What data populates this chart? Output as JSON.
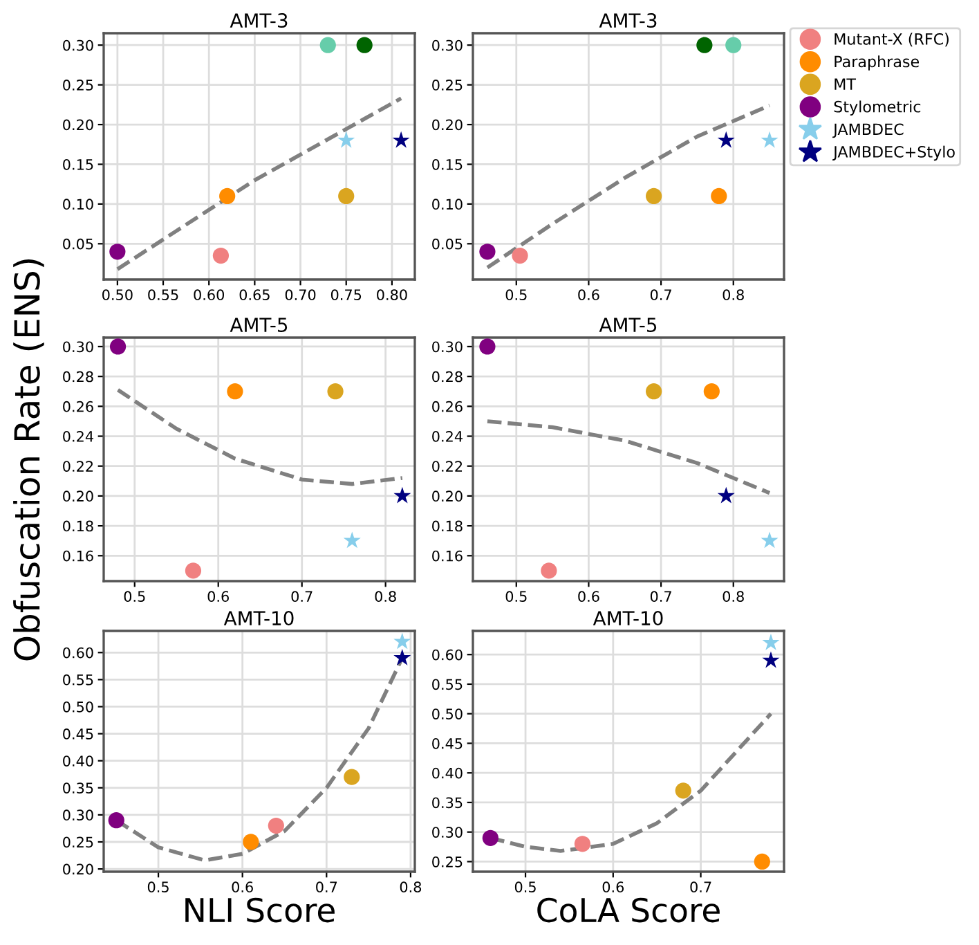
{
  "chart_data": [
    {
      "type": "scatter",
      "title": "AMT-3",
      "xlim": [
        0.485,
        0.825
      ],
      "xticks": [
        {
          "value": 0.5,
          "label": "0.50"
        },
        {
          "value": 0.55,
          "label": "0.55"
        },
        {
          "value": 0.6,
          "label": "0.60"
        },
        {
          "value": 0.65,
          "label": "0.65"
        },
        {
          "value": 0.7,
          "label": "0.70"
        },
        {
          "value": 0.75,
          "label": "0.75"
        },
        {
          "value": 0.8,
          "label": "0.80"
        }
      ],
      "ylim": [
        0.005,
        0.315
      ],
      "yticks": [
        {
          "value": 0.05,
          "label": "0.05"
        },
        {
          "value": 0.1,
          "label": "0.10"
        },
        {
          "value": 0.15,
          "label": "0.15"
        },
        {
          "value": 0.2,
          "label": "0.20"
        },
        {
          "value": 0.25,
          "label": "0.25"
        },
        {
          "value": 0.3,
          "label": "0.30"
        }
      ],
      "grid": true,
      "legend": false,
      "series": [
        {
          "type": "line",
          "color": "#808080",
          "line_style": "dashed",
          "marker": "none",
          "x": [
            0.5,
            0.65,
            0.81
          ],
          "values": [
            0.018,
            0.13,
            0.233
          ]
        },
        {
          "color": "#f08080",
          "marker": "circle",
          "x": [
            0.613
          ],
          "values": [
            0.035
          ]
        },
        {
          "color": "#ff8c00",
          "marker": "circle",
          "x": [
            0.62
          ],
          "values": [
            0.11
          ]
        },
        {
          "color": "#daa520",
          "marker": "circle",
          "x": [
            0.75
          ],
          "values": [
            0.11
          ]
        },
        {
          "color": "#800080",
          "marker": "circle",
          "x": [
            0.5
          ],
          "values": [
            0.04
          ]
        },
        {
          "color": "#66cdaa",
          "marker": "circle",
          "x": [
            0.73
          ],
          "values": [
            0.3
          ]
        },
        {
          "color": "#006400",
          "marker": "circle",
          "x": [
            0.77
          ],
          "values": [
            0.3
          ]
        },
        {
          "color": "#87ceeb",
          "marker": "star",
          "x": [
            0.75
          ],
          "values": [
            0.18
          ]
        },
        {
          "color": "#000080",
          "marker": "star",
          "x": [
            0.81
          ],
          "values": [
            0.18
          ]
        }
      ]
    },
    {
      "type": "scatter",
      "title": "AMT-3",
      "xlim": [
        0.44,
        0.87
      ],
      "xticks": [
        0.5,
        0.6,
        0.7,
        0.8
      ],
      "ylim": [
        0.005,
        0.315
      ],
      "yticks": [
        {
          "value": 0.05,
          "label": "0.05"
        },
        {
          "value": 0.1,
          "label": "0.10"
        },
        {
          "value": 0.15,
          "label": "0.15"
        },
        {
          "value": 0.2,
          "label": "0.20"
        },
        {
          "value": 0.25,
          "label": "0.25"
        },
        {
          "value": 0.3,
          "label": "0.30"
        }
      ],
      "grid": true,
      "legend": "top right",
      "series": [
        {
          "type": "line",
          "color": "#808080",
          "line_style": "dashed",
          "marker": "none",
          "x": [
            0.46,
            0.55,
            0.65,
            0.75,
            0.85
          ],
          "values": [
            0.02,
            0.075,
            0.133,
            0.185,
            0.224
          ]
        },
        {
          "name": "Mutant-X (RFC)",
          "color": "#f08080",
          "marker": "circle",
          "x": [
            0.505
          ],
          "values": [
            0.035
          ]
        },
        {
          "name": "Paraphrase",
          "color": "#ff8c00",
          "marker": "circle",
          "x": [
            0.78
          ],
          "values": [
            0.11
          ]
        },
        {
          "name": "MT",
          "color": "#daa520",
          "marker": "circle",
          "x": [
            0.69
          ],
          "values": [
            0.11
          ]
        },
        {
          "name": "Stylometric",
          "color": "#800080",
          "marker": "circle",
          "x": [
            0.46
          ],
          "values": [
            0.04
          ]
        },
        {
          "color": "#66cdaa",
          "marker": "circle",
          "x": [
            0.8
          ],
          "values": [
            0.3
          ]
        },
        {
          "color": "#006400",
          "marker": "circle",
          "x": [
            0.76
          ],
          "values": [
            0.3
          ]
        },
        {
          "name": "JAMBDEC",
          "color": "#87ceeb",
          "marker": "star",
          "x": [
            0.85
          ],
          "values": [
            0.18
          ]
        },
        {
          "name": "JAMBDEC+Stylo",
          "color": "#000080",
          "marker": "star",
          "x": [
            0.79
          ],
          "values": [
            0.18
          ]
        }
      ]
    },
    {
      "type": "scatter",
      "title": "AMT-5",
      "ylabel": "Obfuscation Rate (ENS)",
      "xlim": [
        0.463,
        0.835
      ],
      "xticks": [
        0.5,
        0.6,
        0.7,
        0.8
      ],
      "ylim": [
        0.143,
        0.306
      ],
      "yticks": [
        0.16,
        0.18,
        {
          "value": 0.2,
          "label": "0.20"
        },
        0.22,
        0.24,
        0.26,
        0.28,
        {
          "value": 0.3,
          "label": "0.30"
        }
      ],
      "grid": true,
      "legend": false,
      "series": [
        {
          "type": "line",
          "color": "#808080",
          "line_style": "dashed",
          "marker": "none",
          "x": [
            0.48,
            0.55,
            0.62,
            0.7,
            0.76,
            0.82
          ],
          "values": [
            0.271,
            0.245,
            0.225,
            0.211,
            0.208,
            0.212
          ]
        },
        {
          "color": "#f08080",
          "marker": "circle",
          "x": [
            0.57
          ],
          "values": [
            0.15
          ]
        },
        {
          "color": "#ff8c00",
          "marker": "circle",
          "x": [
            0.62
          ],
          "values": [
            0.27
          ]
        },
        {
          "color": "#daa520",
          "marker": "circle",
          "x": [
            0.74
          ],
          "values": [
            0.27
          ]
        },
        {
          "color": "#800080",
          "marker": "circle",
          "x": [
            0.48
          ],
          "values": [
            0.3
          ]
        },
        {
          "color": "#87ceeb",
          "marker": "star",
          "x": [
            0.76
          ],
          "values": [
            0.17
          ]
        },
        {
          "color": "#000080",
          "marker": "star",
          "x": [
            0.82
          ],
          "values": [
            0.2
          ]
        }
      ]
    },
    {
      "type": "scatter",
      "title": "AMT-5",
      "xlim": [
        0.44,
        0.87
      ],
      "xticks": [
        0.5,
        0.6,
        0.7,
        0.8
      ],
      "ylim": [
        0.143,
        0.306
      ],
      "yticks": [
        0.16,
        0.18,
        {
          "value": 0.2,
          "label": "0.20"
        },
        0.22,
        0.24,
        0.26,
        0.28,
        {
          "value": 0.3,
          "label": "0.30"
        }
      ],
      "grid": true,
      "legend": false,
      "series": [
        {
          "type": "line",
          "color": "#808080",
          "line_style": "dashed",
          "marker": "none",
          "x": [
            0.46,
            0.55,
            0.65,
            0.75,
            0.85
          ],
          "values": [
            0.25,
            0.246,
            0.237,
            0.222,
            0.202
          ]
        },
        {
          "color": "#f08080",
          "marker": "circle",
          "x": [
            0.545
          ],
          "values": [
            0.15
          ]
        },
        {
          "color": "#ff8c00",
          "marker": "circle",
          "x": [
            0.77
          ],
          "values": [
            0.27
          ]
        },
        {
          "color": "#daa520",
          "marker": "circle",
          "x": [
            0.69
          ],
          "values": [
            0.27
          ]
        },
        {
          "color": "#800080",
          "marker": "circle",
          "x": [
            0.46
          ],
          "values": [
            0.3
          ]
        },
        {
          "color": "#87ceeb",
          "marker": "star",
          "x": [
            0.85
          ],
          "values": [
            0.17
          ]
        },
        {
          "color": "#000080",
          "marker": "star",
          "x": [
            0.79
          ],
          "values": [
            0.2
          ]
        }
      ]
    },
    {
      "type": "scatter",
      "title": "AMT-10",
      "xlabel": "NLI Score",
      "xlim": [
        0.435,
        0.805
      ],
      "xticks": [
        0.5,
        0.6,
        0.7,
        0.8
      ],
      "ylim": [
        0.195,
        0.64
      ],
      "yticks": [
        {
          "value": 0.2,
          "label": "0.20"
        },
        0.25,
        {
          "value": 0.3,
          "label": "0.30"
        },
        0.35,
        {
          "value": 0.4,
          "label": "0.40"
        },
        0.45,
        {
          "value": 0.5,
          "label": "0.50"
        },
        0.55,
        {
          "value": 0.6,
          "label": "0.60"
        }
      ],
      "grid": true,
      "legend": false,
      "series": [
        {
          "type": "line",
          "color": "#808080",
          "line_style": "dashed",
          "marker": "none",
          "x": [
            0.45,
            0.5,
            0.555,
            0.6,
            0.65,
            0.7,
            0.75,
            0.79
          ],
          "values": [
            0.29,
            0.24,
            0.216,
            0.228,
            0.27,
            0.35,
            0.46,
            0.59
          ]
        },
        {
          "color": "#f08080",
          "marker": "circle",
          "x": [
            0.64
          ],
          "values": [
            0.28
          ]
        },
        {
          "color": "#ff8c00",
          "marker": "circle",
          "x": [
            0.61
          ],
          "values": [
            0.25
          ]
        },
        {
          "color": "#daa520",
          "marker": "circle",
          "x": [
            0.73
          ],
          "values": [
            0.37
          ]
        },
        {
          "color": "#800080",
          "marker": "circle",
          "x": [
            0.45
          ],
          "values": [
            0.29
          ]
        },
        {
          "color": "#87ceeb",
          "marker": "star",
          "x": [
            0.79
          ],
          "values": [
            0.62
          ]
        },
        {
          "color": "#000080",
          "marker": "star",
          "x": [
            0.79
          ],
          "values": [
            0.59
          ]
        }
      ]
    },
    {
      "type": "scatter",
      "title": "AMT-10",
      "xlabel": "CoLA Score",
      "xlim": [
        0.44,
        0.795
      ],
      "xticks": [
        0.5,
        0.6,
        0.7
      ],
      "ylim": [
        0.233,
        0.64
      ],
      "yticks": [
        0.25,
        {
          "value": 0.3,
          "label": "0.30"
        },
        0.35,
        {
          "value": 0.4,
          "label": "0.40"
        },
        0.45,
        {
          "value": 0.5,
          "label": "0.50"
        },
        0.55,
        {
          "value": 0.6,
          "label": "0.60"
        }
      ],
      "grid": true,
      "legend": false,
      "series": [
        {
          "type": "line",
          "color": "#808080",
          "line_style": "dashed",
          "marker": "none",
          "x": [
            0.46,
            0.5,
            0.54,
            0.6,
            0.65,
            0.7,
            0.78
          ],
          "values": [
            0.29,
            0.275,
            0.268,
            0.28,
            0.315,
            0.37,
            0.5
          ]
        },
        {
          "color": "#f08080",
          "marker": "circle",
          "x": [
            0.565
          ],
          "values": [
            0.28
          ]
        },
        {
          "color": "#ff8c00",
          "marker": "circle",
          "x": [
            0.77
          ],
          "values": [
            0.25
          ]
        },
        {
          "color": "#daa520",
          "marker": "circle",
          "x": [
            0.68
          ],
          "values": [
            0.37
          ]
        },
        {
          "color": "#800080",
          "marker": "circle",
          "x": [
            0.46
          ],
          "values": [
            0.29
          ]
        },
        {
          "color": "#87ceeb",
          "marker": "star",
          "x": [
            0.78
          ],
          "values": [
            0.62
          ]
        },
        {
          "color": "#000080",
          "marker": "star",
          "x": [
            0.78
          ],
          "values": [
            0.59
          ]
        }
      ]
    }
  ]
}
